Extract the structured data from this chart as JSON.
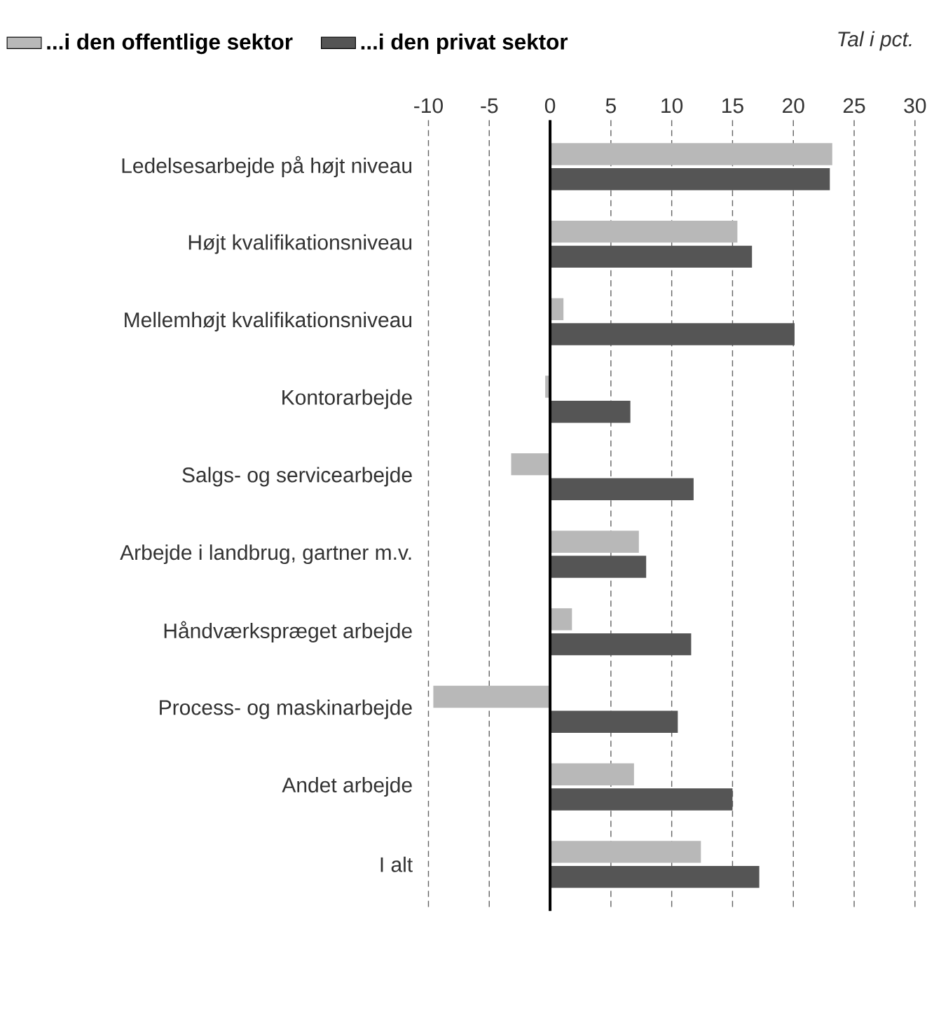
{
  "chart_data": {
    "type": "bar",
    "orientation": "horizontal",
    "categories": [
      "Ledelsesarbejde på højt niveau",
      "Højt kvalifikationsniveau",
      "Mellemhøjt kvalifikationsniveau",
      "Kontorarbejde",
      "Salgs- og servicearbejde",
      "Arbejde i landbrug, gartner m.v.",
      "Håndværkspræget arbejde",
      "Process- og maskinarbejde",
      "Andet arbejde",
      "I alt"
    ],
    "series": [
      {
        "name": "...i den offentlige sektor",
        "color": "#b8b8b8",
        "values": [
          23.2,
          15.4,
          1.1,
          -0.4,
          -3.2,
          7.3,
          1.8,
          -9.6,
          6.9,
          12.4
        ]
      },
      {
        "name": "...i den privat sektor",
        "color": "#555555",
        "values": [
          23.0,
          16.6,
          20.1,
          6.6,
          11.8,
          7.9,
          11.6,
          10.5,
          15.0,
          17.2
        ]
      }
    ],
    "xlim": [
      -10,
      30
    ],
    "xticks": [
      -10,
      -5,
      0,
      5,
      10,
      15,
      20,
      25,
      30
    ],
    "grid": "x",
    "legend": "top",
    "annotations": [
      "Tal i pct."
    ]
  }
}
